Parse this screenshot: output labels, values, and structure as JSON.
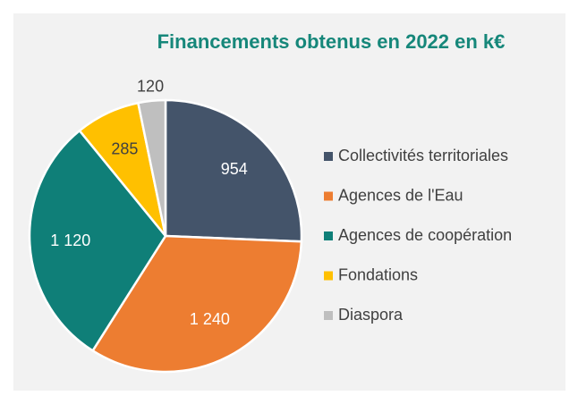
{
  "chart_data": {
    "type": "pie",
    "title": "Financements obtenus en 2022 en k€",
    "categories": [
      "Collectivités territoriales",
      "Agences de l'Eau",
      "Agences de coopération",
      "Fondations",
      "Diaspora"
    ],
    "values": [
      954,
      1240,
      1120,
      285,
      120
    ],
    "value_labels": [
      "954",
      "1 240",
      "1 120",
      "285",
      "120"
    ],
    "colors": [
      "#44546a",
      "#ed7d31",
      "#0f7f78",
      "#ffc000",
      "#bfbfbf"
    ],
    "legend": "right"
  }
}
